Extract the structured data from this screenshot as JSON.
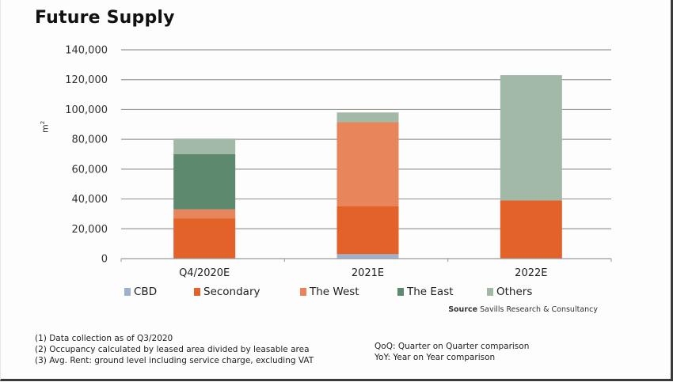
{
  "title": "Future Supply",
  "chart_data": {
    "type": "bar",
    "stacked": true,
    "title": "Future Supply",
    "xlabel": "",
    "ylabel": "m²",
    "ylim": [
      0,
      140000
    ],
    "yticks": [
      0,
      20000,
      40000,
      60000,
      80000,
      100000,
      120000,
      140000
    ],
    "ytick_labels": [
      "0",
      "20,000",
      "40,000",
      "60,000",
      "80,000",
      "100,000",
      "120,000",
      "140,000"
    ],
    "grid": true,
    "legend_position": "bottom",
    "categories": [
      "Q4/2020E",
      "2021E",
      "2022E"
    ],
    "series": [
      {
        "name": "CBD",
        "color": "#9fb1cc",
        "values": [
          0,
          3000,
          0
        ]
      },
      {
        "name": "Secondary",
        "color": "#e2622a",
        "values": [
          27000,
          32000,
          39000
        ]
      },
      {
        "name": "The West",
        "color": "#e9855a",
        "values": [
          6000,
          56500,
          0
        ]
      },
      {
        "name": "The East",
        "color": "#5d8a6e",
        "values": [
          37000,
          0,
          0
        ]
      },
      {
        "name": "Others",
        "color": "#a3b9a8",
        "values": [
          10500,
          6500,
          84000
        ]
      }
    ]
  },
  "source": {
    "label": "Source",
    "text": "Savills Research & Consultancy"
  },
  "notes_left": [
    "(1) Data collection as of Q3/2020",
    "(2) Occupancy calculated by leased area divided by leasable area",
    "(3) Avg. Rent: ground level including service charge, excluding VAT"
  ],
  "notes_right": [
    "QoQ: Quarter on Quarter comparison",
    "YoY: Year on Year comparison"
  ]
}
